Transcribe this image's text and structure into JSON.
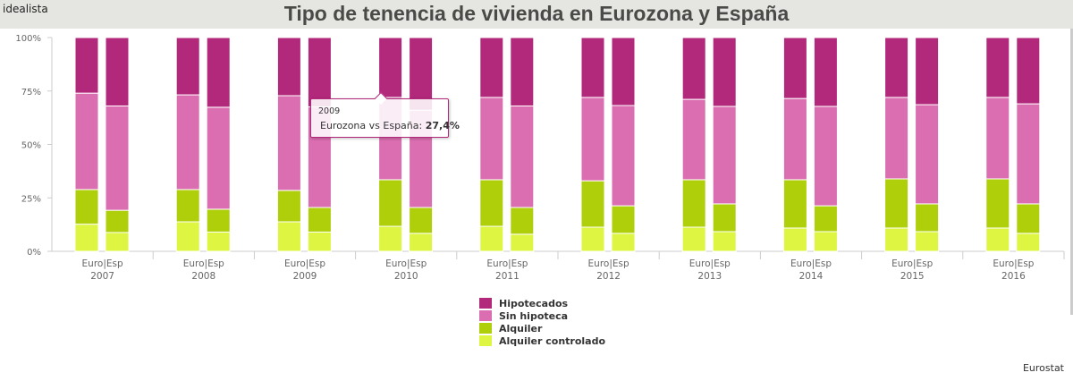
{
  "header": {
    "brand": "idealista",
    "title": "Tipo de tenencia de vivienda en Eurozona y España"
  },
  "source": "Eurostat",
  "tooltip": {
    "year": "2009",
    "label": "Eurozona vs España: ",
    "value": "27,4%"
  },
  "chart_data": {
    "type": "bar",
    "stacked": true,
    "title": "Tipo de tenencia de vivienda en Eurozona y España",
    "categories": [
      "2007",
      "2008",
      "2009",
      "2010",
      "2011",
      "2012",
      "2013",
      "2014",
      "2015",
      "2016"
    ],
    "bar_label": "Euro|Esp",
    "bars_per_category": [
      "Euro",
      "Esp"
    ],
    "ylim": [
      0,
      100
    ],
    "yticks": [
      "0%",
      "25%",
      "50%",
      "75%",
      "100%"
    ],
    "legend_position": "bottom",
    "series": [
      {
        "name": "Alquiler controlado",
        "color": "#def542",
        "euro": [
          12.7,
          13.8,
          13.8,
          11.7,
          11.7,
          11.3,
          11.3,
          10.9,
          10.9,
          10.9
        ],
        "esp": [
          8.8,
          9.0,
          9.0,
          8.4,
          8.0,
          8.4,
          9.2,
          9.2,
          9.2,
          8.4
        ]
      },
      {
        "name": "Alquiler",
        "color": "#b0cf0b",
        "euro": [
          16.2,
          15.1,
          14.7,
          21.8,
          21.8,
          21.7,
          22.2,
          22.6,
          23.0,
          23.0
        ],
        "esp": [
          10.4,
          10.7,
          11.5,
          12.1,
          12.5,
          12.9,
          13.0,
          12.1,
          13.0,
          13.8
        ]
      },
      {
        "name": "Sin hipoteca",
        "color": "#da6eb0",
        "euro": [
          45.1,
          44.3,
          44.3,
          38.5,
          38.5,
          39.0,
          37.6,
          38.0,
          38.1,
          38.1
        ],
        "esp": [
          48.8,
          47.7,
          47.1,
          45.5,
          47.5,
          46.9,
          45.6,
          46.5,
          46.4,
          46.8
        ]
      },
      {
        "name": "Hipotecados",
        "color": "#b2287b",
        "euro": [
          26.0,
          26.8,
          27.2,
          28.0,
          28.0,
          28.0,
          28.9,
          28.5,
          28.0,
          28.0
        ],
        "esp": [
          32.0,
          32.6,
          32.4,
          34.0,
          32.0,
          31.8,
          32.2,
          32.2,
          31.4,
          31.0
        ]
      }
    ]
  }
}
